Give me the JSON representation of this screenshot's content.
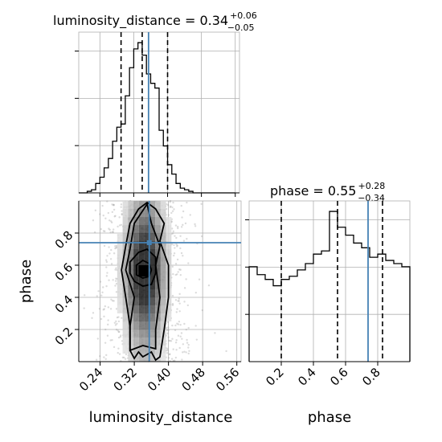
{
  "chart_data": [
    {
      "type": "histogram",
      "panel": "luminosity_distance",
      "title": {
        "main": "luminosity_distance = 0.34",
        "sup": "+0.06",
        "sub": "−0.05"
      },
      "xlim": [
        0.19,
        0.57
      ],
      "bin_edges": [
        0.19,
        0.2,
        0.21,
        0.22,
        0.23,
        0.24,
        0.25,
        0.26,
        0.27,
        0.28,
        0.29,
        0.3,
        0.31,
        0.32,
        0.33,
        0.34,
        0.35,
        0.36,
        0.37,
        0.38,
        0.39,
        0.4,
        0.41,
        0.42,
        0.43,
        0.44,
        0.45,
        0.46,
        0.47,
        0.48,
        0.49,
        0.5,
        0.51,
        0.52,
        0.53,
        0.54,
        0.55,
        0.56
      ],
      "counts": [
        0,
        0,
        1,
        2,
        6,
        10,
        16,
        22,
        33,
        42,
        44,
        62,
        80,
        92,
        96,
        88,
        76,
        70,
        67,
        40,
        30,
        18,
        12,
        6,
        3,
        2,
        1,
        0,
        0,
        0,
        0,
        0,
        0,
        0,
        0,
        0,
        0
      ],
      "quantiles": [
        0.29,
        0.34,
        0.4
      ],
      "truth": 0.355,
      "ytick_count": 3
    },
    {
      "type": "histogram",
      "panel": "phase",
      "title": {
        "main": "phase = 0.55",
        "sup": "+0.28",
        "sub": "−0.34"
      },
      "xlim": [
        0.0,
        1.0
      ],
      "xticks": [
        0.2,
        0.4,
        0.6,
        0.8
      ],
      "xtick_labels": [
        "0.2",
        "0.4",
        "0.6",
        "0.8"
      ],
      "xlabel": "phase",
      "bin_edges": [
        0.0,
        0.05,
        0.1,
        0.15,
        0.2,
        0.25,
        0.3,
        0.35,
        0.4,
        0.45,
        0.5,
        0.55,
        0.6,
        0.65,
        0.7,
        0.75,
        0.8,
        0.85,
        0.9,
        0.95,
        1.0
      ],
      "counts": [
        60,
        55,
        52,
        48,
        52,
        54,
        58,
        62,
        68,
        70,
        95,
        85,
        80,
        75,
        72,
        66,
        68,
        64,
        62,
        60
      ],
      "quantiles": [
        0.2,
        0.55,
        0.83
      ],
      "truth": 0.74,
      "ytick_count": 3
    },
    {
      "type": "heatmap",
      "panel": "luminosity_distance_vs_phase",
      "xlabel": "luminosity_distance",
      "ylabel": "phase",
      "xlim": [
        0.19,
        0.57
      ],
      "ylim": [
        0.0,
        1.0
      ],
      "xticks": [
        0.24,
        0.32,
        0.4,
        0.48,
        0.56
      ],
      "xtick_labels": [
        "0.24",
        "0.32",
        "0.40",
        "0.48",
        "0.56"
      ],
      "yticks": [
        0.2,
        0.4,
        0.6,
        0.8
      ],
      "ytick_labels": [
        "0.2",
        "0.4",
        "0.6",
        "0.8"
      ],
      "truth": {
        "x": 0.355,
        "y": 0.74
      },
      "density_peak": {
        "x": 0.34,
        "y": 0.56
      },
      "contours": [
        {
          "level": 1,
          "points": [
            [
              0.31,
              0.07
            ],
            [
              0.32,
              0.02
            ],
            [
              0.33,
              0.06
            ],
            [
              0.34,
              0.03
            ],
            [
              0.36,
              0.06
            ],
            [
              0.37,
              0.01
            ],
            [
              0.38,
              0.03
            ],
            [
              0.39,
              0.2
            ],
            [
              0.4,
              0.4
            ],
            [
              0.4,
              0.6
            ],
            [
              0.38,
              0.75
            ],
            [
              0.39,
              0.86
            ],
            [
              0.37,
              0.95
            ],
            [
              0.35,
              0.99
            ],
            [
              0.33,
              0.95
            ],
            [
              0.31,
              0.86
            ],
            [
              0.3,
              0.72
            ],
            [
              0.29,
              0.57
            ],
            [
              0.3,
              0.4
            ],
            [
              0.31,
              0.22
            ]
          ]
        },
        {
          "level": 2,
          "points": [
            [
              0.31,
              0.07
            ],
            [
              0.34,
              0.1
            ],
            [
              0.37,
              0.08
            ],
            [
              0.37,
              0.2
            ],
            [
              0.38,
              0.4
            ],
            [
              0.37,
              0.6
            ],
            [
              0.38,
              0.72
            ],
            [
              0.36,
              0.86
            ],
            [
              0.35,
              0.98
            ],
            [
              0.32,
              0.86
            ],
            [
              0.31,
              0.7
            ],
            [
              0.3,
              0.57
            ],
            [
              0.32,
              0.4
            ],
            [
              0.31,
              0.22
            ]
          ]
        },
        {
          "level": 3,
          "points": [
            [
              0.32,
              0.5
            ],
            [
              0.34,
              0.47
            ],
            [
              0.36,
              0.48
            ],
            [
              0.37,
              0.55
            ],
            [
              0.37,
              0.65
            ],
            [
              0.35,
              0.7
            ],
            [
              0.33,
              0.68
            ],
            [
              0.31,
              0.62
            ],
            [
              0.31,
              0.55
            ]
          ]
        },
        {
          "level": 4,
          "points": [
            [
              0.325,
              0.54
            ],
            [
              0.34,
              0.52
            ],
            [
              0.355,
              0.53
            ],
            [
              0.36,
              0.57
            ],
            [
              0.355,
              0.61
            ],
            [
              0.34,
              0.63
            ],
            [
              0.325,
              0.6
            ]
          ]
        }
      ]
    }
  ]
}
